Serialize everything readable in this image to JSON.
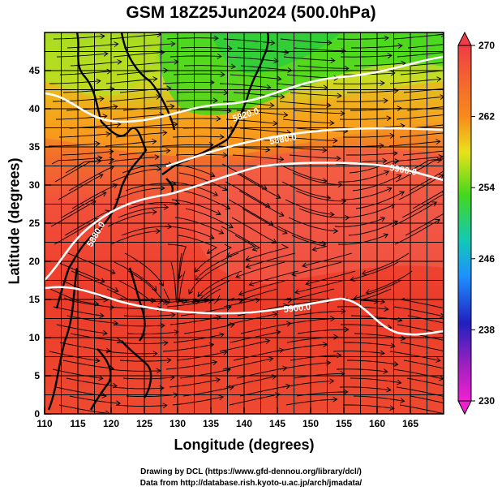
{
  "title": "GSM 18Z25Jun2024 (500.0hPa)",
  "xlabel": "Longitude (degrees)",
  "ylabel": "Latitude  (degrees)",
  "x_ticks": [
    "110",
    "115",
    "120",
    "125",
    "130",
    "135",
    "140",
    "145",
    "150",
    "155",
    "160",
    "165"
  ],
  "y_ticks": [
    "0",
    "5",
    "10",
    "15",
    "20",
    "25",
    "30",
    "35",
    "40",
    "45"
  ],
  "colorbar": {
    "labels": [
      "270",
      "262",
      "254",
      "246",
      "238",
      "230"
    ],
    "colors": [
      "#f03c46",
      "#f88a1c",
      "#e9e21a",
      "#44d81d",
      "#12c8b8",
      "#1e90ff",
      "#2020c0",
      "#a020c0",
      "#f020d0"
    ]
  },
  "contour_labels": [
    "5820.0",
    "5880.0",
    "5900.0",
    "5880.0",
    "5900.0"
  ],
  "credits": {
    "line1": "Drawing by DCL (https://www.gfd-dennou.org/library/dcl/)",
    "line2": "Data from http://database.rish.kyoto-u.ac.jp/arch/jmadata/"
  }
}
